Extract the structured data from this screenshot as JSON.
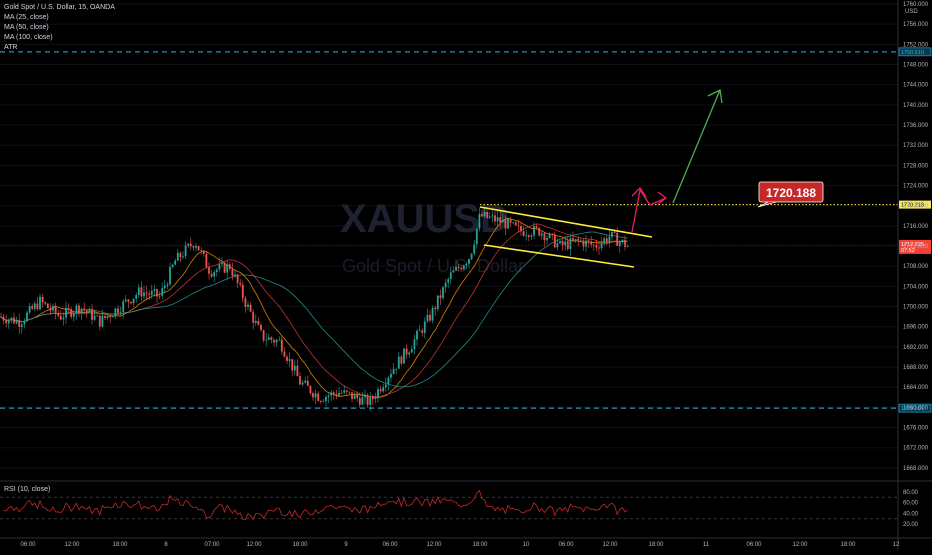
{
  "legend": {
    "symbol": "Gold Spot / U.S. Dollar, 15, OANDA",
    "ma25": "MA (25, close)",
    "ma50": "MA (50, close)",
    "ma100": "MA (100, close)",
    "atr": "ATR"
  },
  "currency": "USD",
  "watermark": {
    "ticker": "XAUUSD",
    "name": "Gold Spot / U.S. Dollar"
  },
  "rsi_label": "RSI (10, close)",
  "colors": {
    "background": "#000000",
    "up_candle": "#26a69a",
    "down_candle": "#ef5350",
    "channel": "#ffeb3b",
    "arrow_up_red": "#e91e63",
    "arrow_green": "#4caf50",
    "level_line": "#29b6f6",
    "resistance_dotted": "#ffeb3b",
    "callout_bg": "#c62828",
    "price_badge": "#f44336",
    "rsi_line": "#c62828",
    "ma25": "#ff9800",
    "ma50": "#e53935",
    "ma100": "#26a69a"
  },
  "chart_data": {
    "type": "candlestick",
    "ylim": [
      1666,
      1760
    ],
    "price_ticks": [
      "1760.000",
      "1756.000",
      "1752.000",
      "1748.000",
      "1744.000",
      "1740.000",
      "1736.000",
      "1732.000",
      "1728.000",
      "1724.000",
      "1720.000",
      "1716.000",
      "1712.000",
      "1708.000",
      "1704.000",
      "1700.000",
      "1696.000",
      "1692.000",
      "1688.000",
      "1684.000",
      "1680.000",
      "1676.000",
      "1672.000",
      "1668.000"
    ],
    "price_tick_values": [
      1760,
      1756,
      1752,
      1748,
      1744,
      1740,
      1736,
      1732,
      1728,
      1724,
      1720,
      1716,
      1712,
      1708,
      1704,
      1700,
      1696,
      1692,
      1688,
      1684,
      1680,
      1676,
      1672,
      1668
    ],
    "x_ticks": [
      "06:00",
      "12:00",
      "18:00",
      "8",
      "07:00",
      "12:00",
      "18:00",
      "9",
      "06:00",
      "12:00",
      "18:00",
      "10",
      "06:00",
      "12:00",
      "18:00",
      "11",
      "06:00",
      "12:00",
      "18:00",
      "12"
    ],
    "levels": {
      "upper_dashed": {
        "label": "1750.510",
        "value": 1750.51
      },
      "lower_dashed": {
        "label": "1679.861",
        "value": 1679.861
      },
      "resistance": {
        "label": "1720.218",
        "value": 1720.218
      },
      "current": {
        "label": "1712.225",
        "countdown": "07:52",
        "value": 1712.225
      }
    },
    "callout": "1720.188",
    "channel": {
      "upper": [
        [
          1720,
          1714.8
        ]
      ],
      "lower": [
        [
          1711,
          1707.9
        ]
      ]
    },
    "rsi": {
      "ticks": [
        "80.00",
        "60.00",
        "40.00",
        "20.00"
      ],
      "upper": 70,
      "lower": 30
    }
  }
}
